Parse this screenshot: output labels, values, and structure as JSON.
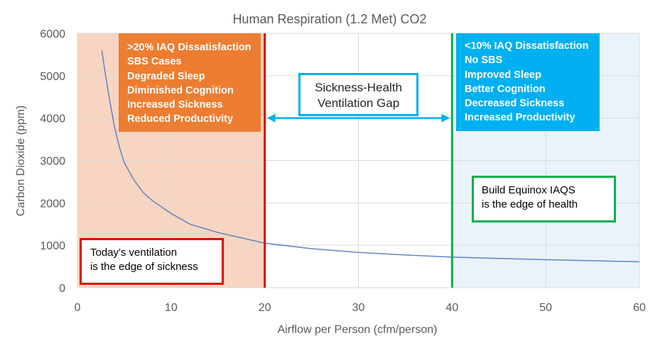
{
  "chart_data": {
    "type": "line",
    "title": "Human Respiration (1.2 Met) CO2",
    "xlabel": "Airflow per Person (cfm/person)",
    "ylabel": "Carbon Dioxide (ppm)",
    "xlim": [
      0,
      60
    ],
    "ylim": [
      0,
      6000
    ],
    "x_ticks": [
      "0",
      "10",
      "20",
      "30",
      "40",
      "50",
      "60"
    ],
    "y_ticks": [
      "0",
      "1000",
      "2000",
      "3000",
      "4000",
      "5000",
      "6000"
    ],
    "grid": true,
    "series": [
      {
        "x": [
          2.6,
          3,
          3.5,
          4,
          4.5,
          5,
          6,
          7,
          8,
          10,
          12,
          15,
          20,
          25,
          30,
          35,
          40,
          45,
          50,
          55,
          60
        ],
        "values": [
          5600,
          5000,
          4350,
          3750,
          3300,
          2950,
          2550,
          2250,
          2050,
          1750,
          1500,
          1300,
          1050,
          920,
          830,
          770,
          720,
          690,
          660,
          635,
          610
        ],
        "color": "#4472c4"
      }
    ],
    "regions": [
      {
        "x_start": 0,
        "x_end": 20,
        "color": "#f8d5c0"
      },
      {
        "x_start": 40,
        "x_end": 60,
        "color": "#eaf3fb"
      }
    ],
    "vertical_lines": [
      {
        "x": 20,
        "color": "#e00000"
      },
      {
        "x": 40,
        "color": "#00b050"
      }
    ],
    "arrow": {
      "x_start": 20,
      "x_end": 40,
      "y": 4000,
      "color": "#00b0f0"
    }
  },
  "annotations": {
    "sickness_effects": [
      ">20% IAQ Dissatisfaction",
      "SBS Cases",
      "Degraded Sleep",
      "Diminished Cognition",
      "Increased Sickness",
      "Reduced Productivity"
    ],
    "health_effects": [
      "<10% IAQ Dissatisfaction",
      "No SBS",
      "Improved Sleep",
      "Better Cognition",
      "Decreased Sickness",
      "Increased Productivity"
    ],
    "gap_label": [
      "Sickness-Health",
      "Ventilation Gap"
    ],
    "sickness_edge": [
      "Today's ventilation",
      "is the edge of sickness"
    ],
    "health_edge": [
      "Build Equinox IAQS",
      "is the edge of health"
    ]
  },
  "colors": {
    "sickness_box": "#ed7d31",
    "health_box": "#00b0f0",
    "grid": "#d9d9d9",
    "text": "#595959"
  }
}
